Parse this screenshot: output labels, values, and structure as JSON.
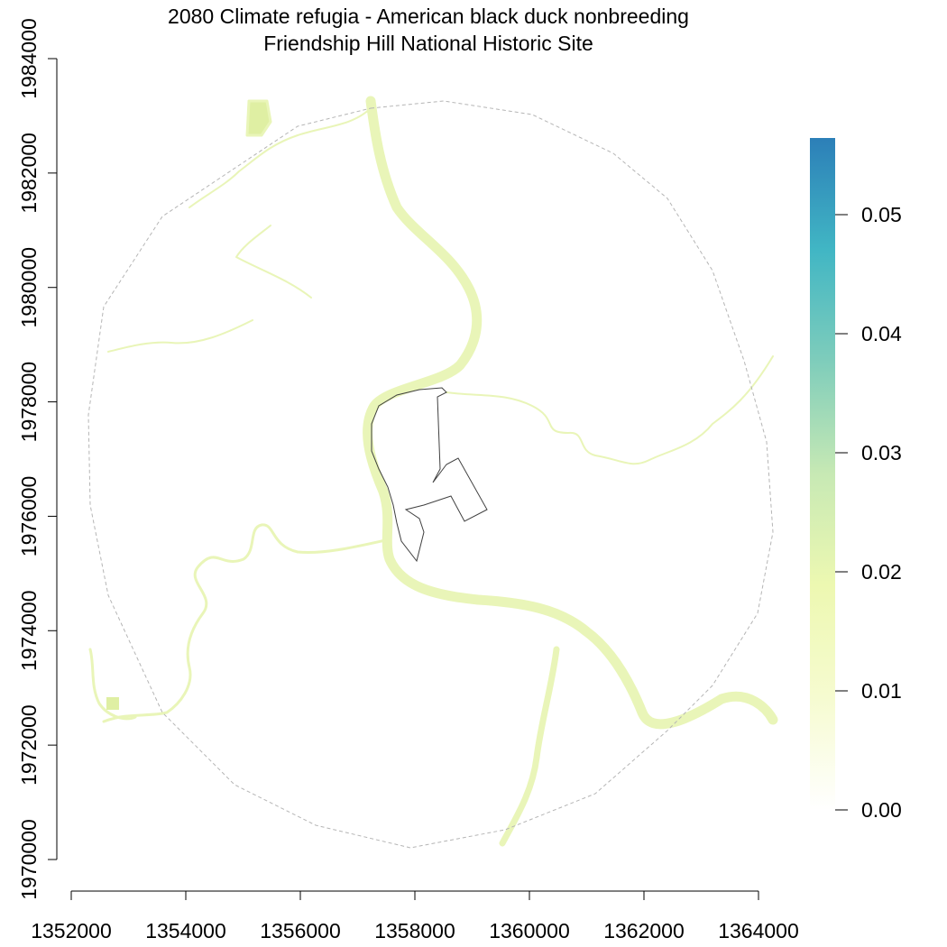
{
  "title": "2080 Climate refugia - American black duck nonbreeding",
  "subtitle": "Friendship Hill National Historic Site",
  "x_axis": {
    "ticks": [
      1352000,
      1354000,
      1356000,
      1358000,
      1360000,
      1362000,
      1364000
    ],
    "tick_labels": [
      "1352000",
      "1354000",
      "1356000",
      "1358000",
      "1360000",
      "1362000",
      "1364000"
    ]
  },
  "y_axis": {
    "ticks": [
      1970000,
      1972000,
      1974000,
      1976000,
      1978000,
      1980000,
      1982000,
      1984000
    ],
    "tick_labels": [
      "1970000",
      "1972000",
      "1974000",
      "1976000",
      "1978000",
      "1980000",
      "1982000",
      "1984000"
    ]
  },
  "colorbar": {
    "min": 0,
    "max": 0.056,
    "ticks": [
      0.0,
      0.01,
      0.02,
      0.03,
      0.04,
      0.05
    ],
    "tick_labels": [
      "0.00",
      "0.01",
      "0.02",
      "0.03",
      "0.04",
      "0.05"
    ],
    "colors": [
      "#ffffff",
      "#f6fbd0",
      "#edf8b1",
      "#c7e9b4",
      "#7fcdbb",
      "#41b6c4",
      "#2c7fb8"
    ]
  },
  "colors": {
    "river": "#e9f5b8",
    "river_edge": "#dfefa3",
    "buffer_line": "#b5b5b5",
    "park_boundary": "#404040"
  }
}
